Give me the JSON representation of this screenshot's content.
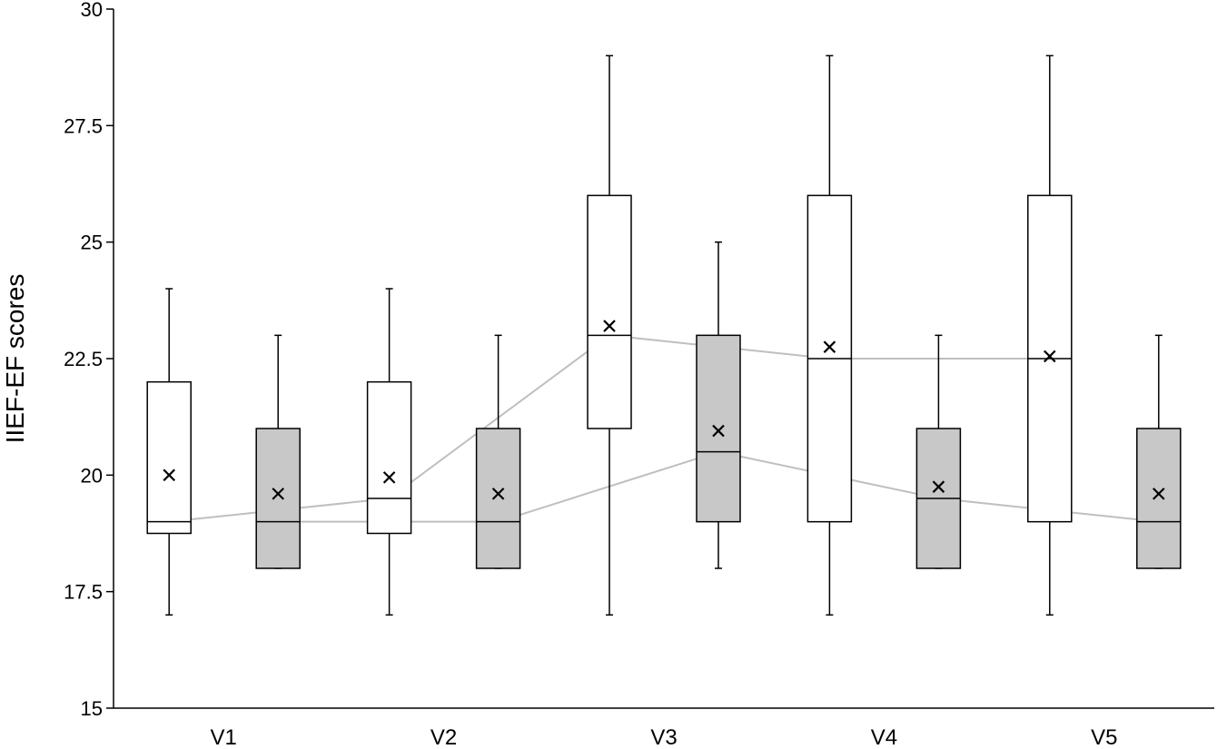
{
  "chart_data": {
    "type": "box",
    "title": "",
    "xlabel": "",
    "ylabel": "IIEF-EF scores",
    "ylim": [
      15,
      30
    ],
    "yticks": [
      15,
      17.5,
      20,
      22.5,
      25,
      27.5,
      30
    ],
    "ytick_labels": [
      "15",
      "17.5",
      "20",
      "22.5",
      "25",
      "27.5",
      "30"
    ],
    "categories": [
      "V1",
      "V2",
      "V3",
      "V4",
      "V5"
    ],
    "grid": false,
    "legend": "none",
    "series": [
      {
        "fill": "#ffffff",
        "boxes": [
          {
            "min": 17,
            "q1": 18.75,
            "median": 19,
            "q3": 22,
            "max": 24,
            "mean": 20
          },
          {
            "min": 17,
            "q1": 18.75,
            "median": 19.5,
            "q3": 22,
            "max": 24,
            "mean": 19.95
          },
          {
            "min": 17,
            "q1": 21,
            "median": 23,
            "q3": 26,
            "max": 29,
            "mean": 23.2
          },
          {
            "min": 17,
            "q1": 19,
            "median": 22.5,
            "q3": 26,
            "max": 29,
            "mean": 22.75
          },
          {
            "min": 17,
            "q1": 19,
            "median": 22.5,
            "q3": 26,
            "max": 29,
            "mean": 22.55
          }
        ]
      },
      {
        "fill": "#c8c8c8",
        "boxes": [
          {
            "min": 18,
            "q1": 18,
            "median": 19,
            "q3": 21,
            "max": 23,
            "mean": 19.6
          },
          {
            "min": 18,
            "q1": 18,
            "median": 19,
            "q3": 21,
            "max": 23,
            "mean": 19.6
          },
          {
            "min": 18,
            "q1": 19,
            "median": 20.5,
            "q3": 23,
            "max": 25,
            "mean": 20.95
          },
          {
            "min": 18,
            "q1": 18,
            "median": 19.5,
            "q3": 21,
            "max": 23,
            "mean": 19.75
          },
          {
            "min": 18,
            "q1": 18,
            "median": 19,
            "q3": 21,
            "max": 23,
            "mean": 19.6
          }
        ]
      }
    ],
    "median_line_color": "#bfbfbf"
  }
}
